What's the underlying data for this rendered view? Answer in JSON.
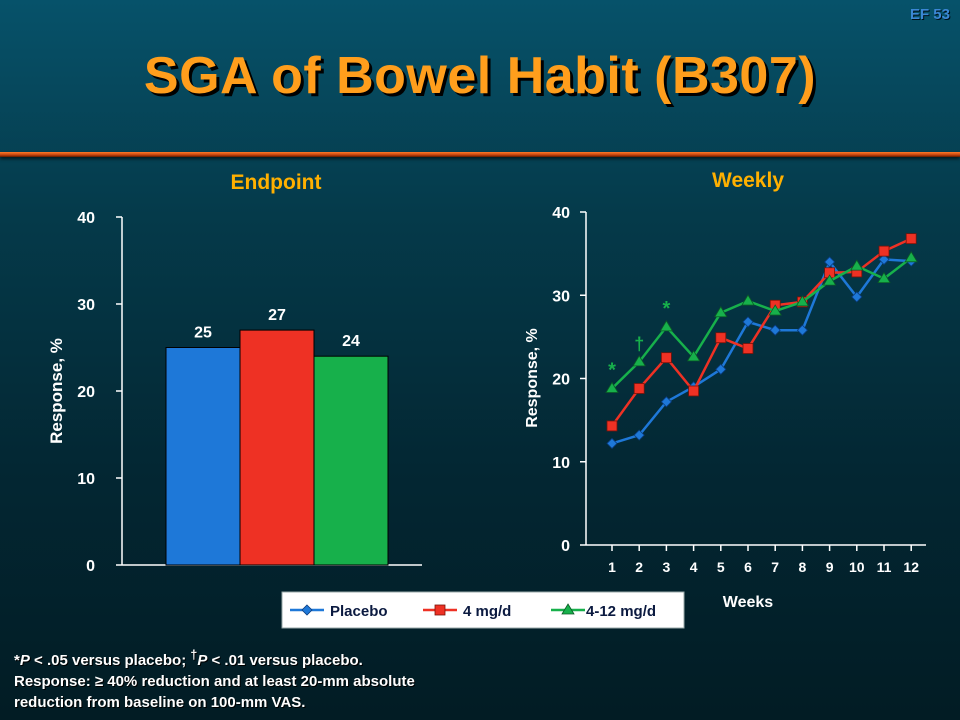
{
  "slide_id": "EF 53",
  "title": "SGA of Bowel Habit (B307)",
  "footnote": {
    "line1_parts": [
      "*",
      "P",
      " < .05 versus placebo; ",
      "†",
      "P",
      " < .01 versus placebo."
    ],
    "line2": "Response: ≥ 40% reduction and at least 20-mm absolute",
    "line3": "reduction from baseline on 100-mm VAS."
  },
  "colors": {
    "placebo": "#1e78d8",
    "dose4": "#ee3124",
    "dose412": "#17b04b",
    "panel_title": "#ffb000",
    "title": "#ff9e1c"
  },
  "chart_data": [
    {
      "type": "bar",
      "title": "Endpoint",
      "ylabel": "Response, %",
      "ylim": [
        0,
        40
      ],
      "yticks": [
        0,
        10,
        20,
        30,
        40
      ],
      "categories": [
        "Placebo",
        "4 mg/d",
        "4-12 mg/d"
      ],
      "values": [
        25,
        27,
        24
      ],
      "data_labels": [
        "25",
        "27",
        "24"
      ],
      "grid": false
    },
    {
      "type": "line",
      "title": "Weekly",
      "xlabel": "Weeks",
      "ylabel": "Response, %",
      "ylim": [
        0,
        40
      ],
      "yticks": [
        0,
        10,
        20,
        30,
        40
      ],
      "x": [
        1,
        2,
        3,
        4,
        5,
        6,
        7,
        8,
        9,
        10,
        11,
        12
      ],
      "grid": false,
      "legend_position": "bottom",
      "series": [
        {
          "name": "Placebo",
          "marker": "diamond",
          "values": [
            12.2,
            13.2,
            17.2,
            19.0,
            21.1,
            26.8,
            25.8,
            25.8,
            34.0,
            29.8,
            34.3,
            34.1
          ]
        },
        {
          "name": "4 mg/d",
          "marker": "square",
          "values": [
            14.3,
            18.8,
            22.5,
            18.5,
            24.9,
            23.6,
            28.8,
            29.2,
            32.7,
            32.8,
            35.3,
            36.8
          ]
        },
        {
          "name": "4-12 mg/d",
          "marker": "triangle",
          "values": [
            18.8,
            22.0,
            26.2,
            22.6,
            27.9,
            29.3,
            28.1,
            29.2,
            31.7,
            33.5,
            32.0,
            34.5
          ]
        }
      ],
      "annotations": [
        {
          "week": 1,
          "text": "*",
          "above": 18.8
        },
        {
          "week": 2,
          "text": "†",
          "above": 22.0
        },
        {
          "week": 3,
          "text": "*",
          "above": 26.2
        }
      ]
    }
  ]
}
